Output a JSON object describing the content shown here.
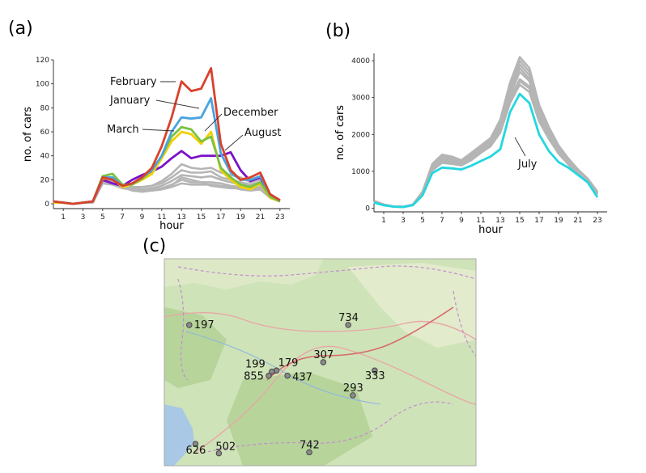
{
  "panels": {
    "a": {
      "letter": "(a)"
    },
    "b": {
      "letter": "(b)"
    },
    "c": {
      "letter": "(c)"
    }
  },
  "colors": {
    "background_series": "#b5b5b5",
    "february": "#d9412b",
    "january": "#4aa3df",
    "march": "#7ac143",
    "december": "#f2d000",
    "august": "#7a12c8",
    "july": "#22d7e0",
    "map_land": "#cfe3b8",
    "map_dark_land": "#b7d49b",
    "map_water": "#a9c8e6",
    "marker": "#8a8a8a"
  },
  "chart_data": [
    {
      "id": "a",
      "type": "line",
      "xlabel": "hour",
      "ylabel": "no. of cars",
      "xlim": [
        0,
        24
      ],
      "ylim": [
        -4,
        120
      ],
      "xticks": [
        1,
        3,
        5,
        7,
        9,
        11,
        13,
        15,
        17,
        19,
        21,
        23
      ],
      "yticks": [
        0,
        20,
        40,
        60,
        80,
        100,
        120
      ],
      "x": [
        0,
        1,
        2,
        3,
        4,
        5,
        6,
        7,
        8,
        9,
        10,
        11,
        12,
        13,
        14,
        15,
        16,
        17,
        18,
        19,
        20,
        21,
        22,
        23
      ],
      "highlighted": [
        {
          "name": "February",
          "color_key": "february",
          "values": [
            2,
            1,
            0,
            1,
            2,
            22,
            20,
            15,
            17,
            22,
            30,
            48,
            72,
            102,
            94,
            96,
            113,
            50,
            28,
            20,
            22,
            26,
            8,
            3
          ]
        },
        {
          "name": "January",
          "color_key": "january",
          "values": [
            2,
            1,
            0,
            1,
            2,
            22,
            22,
            15,
            17,
            22,
            28,
            40,
            60,
            72,
            71,
            72,
            88,
            42,
            26,
            20,
            20,
            23,
            8,
            3
          ]
        },
        {
          "name": "March",
          "color_key": "march",
          "values": [
            2,
            1,
            0,
            1,
            2,
            23,
            25,
            16,
            16,
            21,
            28,
            40,
            56,
            64,
            62,
            52,
            56,
            30,
            22,
            16,
            14,
            18,
            6,
            2
          ]
        },
        {
          "name": "December",
          "color_key": "december",
          "values": [
            1,
            1,
            0,
            1,
            2,
            21,
            21,
            14,
            16,
            20,
            25,
            38,
            52,
            60,
            58,
            50,
            60,
            28,
            20,
            14,
            12,
            17,
            5,
            2
          ]
        },
        {
          "name": "August",
          "color_key": "august",
          "values": [
            1,
            1,
            0,
            1,
            2,
            20,
            17,
            15,
            20,
            24,
            27,
            31,
            38,
            44,
            38,
            40,
            40,
            40,
            43,
            28,
            19,
            22,
            7,
            2
          ]
        }
      ],
      "background_series": [
        [
          2,
          1,
          0,
          1,
          2,
          22,
          21,
          16,
          14,
          14,
          15,
          19,
          25,
          33,
          30,
          29,
          30,
          26,
          24,
          22,
          18,
          20,
          8,
          3
        ],
        [
          2,
          1,
          0,
          1,
          2,
          22,
          19,
          15,
          13,
          14,
          15,
          17,
          22,
          28,
          26,
          26,
          27,
          22,
          20,
          18,
          16,
          18,
          7,
          3
        ],
        [
          1,
          1,
          0,
          1,
          2,
          21,
          19,
          16,
          13,
          12,
          13,
          15,
          19,
          24,
          23,
          22,
          23,
          20,
          18,
          16,
          15,
          16,
          6,
          2
        ],
        [
          2,
          1,
          0,
          1,
          1,
          19,
          17,
          14,
          12,
          11,
          12,
          13,
          16,
          20,
          18,
          18,
          18,
          17,
          15,
          14,
          13,
          14,
          5,
          2
        ],
        [
          1,
          1,
          0,
          1,
          1,
          17,
          16,
          13,
          12,
          11,
          11,
          12,
          14,
          17,
          16,
          16,
          16,
          15,
          14,
          12,
          11,
          12,
          5,
          2
        ],
        [
          1,
          1,
          0,
          1,
          1,
          18,
          17,
          14,
          11,
          10,
          11,
          13,
          15,
          22,
          20,
          18,
          15,
          14,
          13,
          13,
          12,
          13,
          5,
          2
        ]
      ],
      "annotations": [
        "February",
        "January",
        "December",
        "March",
        "August"
      ]
    },
    {
      "id": "b",
      "type": "line",
      "xlabel": "hour",
      "ylabel": "no. of cars",
      "xlim": [
        0,
        24
      ],
      "ylim": [
        -100,
        4200
      ],
      "xticks": [
        1,
        3,
        5,
        7,
        9,
        11,
        13,
        15,
        17,
        19,
        21,
        23
      ],
      "yticks": [
        0,
        1000,
        2000,
        3000,
        4000
      ],
      "x": [
        0,
        1,
        2,
        3,
        4,
        5,
        6,
        7,
        8,
        9,
        10,
        11,
        12,
        13,
        14,
        15,
        16,
        17,
        18,
        19,
        20,
        21,
        22,
        23
      ],
      "highlighted": [
        {
          "name": "July",
          "color_key": "july",
          "values": [
            150,
            80,
            40,
            30,
            80,
            350,
            950,
            1100,
            1080,
            1050,
            1150,
            1280,
            1400,
            1600,
            2600,
            3100,
            2850,
            2000,
            1550,
            1250,
            1100,
            900,
            700,
            300
          ]
        }
      ],
      "background_series": [
        [
          200,
          100,
          50,
          40,
          100,
          450,
          1200,
          1450,
          1400,
          1300,
          1500,
          1700,
          1900,
          2400,
          3400,
          4100,
          3800,
          2800,
          2200,
          1700,
          1350,
          1050,
          800,
          450
        ],
        [
          190,
          95,
          48,
          38,
          95,
          430,
          1150,
          1400,
          1350,
          1280,
          1450,
          1650,
          1850,
          2300,
          3300,
          4000,
          3700,
          2700,
          2100,
          1650,
          1300,
          1000,
          780,
          430
        ],
        [
          180,
          90,
          45,
          36,
          90,
          410,
          1100,
          1350,
          1300,
          1230,
          1400,
          1600,
          1800,
          2250,
          3200,
          3900,
          3600,
          2650,
          2050,
          1600,
          1270,
          980,
          760,
          410
        ],
        [
          170,
          85,
          44,
          34,
          88,
          400,
          1080,
          1300,
          1250,
          1200,
          1350,
          1560,
          1750,
          2200,
          3050,
          3700,
          3450,
          2550,
          2000,
          1550,
          1240,
          960,
          740,
          400
        ],
        [
          160,
          82,
          42,
          32,
          85,
          380,
          1050,
          1250,
          1220,
          1180,
          1320,
          1520,
          1700,
          2100,
          2950,
          3500,
          3300,
          2450,
          1950,
          1520,
          1220,
          950,
          730,
          380
        ],
        [
          165,
          84,
          43,
          33,
          86,
          390,
          1060,
          1280,
          1240,
          1190,
          1340,
          1540,
          1720,
          2150,
          2900,
          3450,
          3250,
          2400,
          1900,
          1500,
          1200,
          940,
          720,
          390
        ],
        [
          175,
          88,
          44,
          35,
          90,
          420,
          1120,
          1380,
          1330,
          1250,
          1420,
          1620,
          1820,
          2280,
          3150,
          3800,
          3500,
          2600,
          2080,
          1620,
          1280,
          990,
          770,
          420
        ],
        [
          155,
          80,
          41,
          31,
          83,
          370,
          1020,
          1230,
          1200,
          1160,
          1300,
          1500,
          1680,
          2050,
          2850,
          3350,
          3150,
          2350,
          1880,
          1480,
          1190,
          930,
          710,
          370
        ]
      ],
      "annotations": [
        "July"
      ]
    }
  ],
  "map": {
    "stations": [
      {
        "label": "197",
        "lon": 0.08,
        "lat": 0.32
      },
      {
        "label": "734",
        "lon": 0.59,
        "lat": 0.32
      },
      {
        "label": "307",
        "lon": 0.51,
        "lat": 0.5
      },
      {
        "label": "179",
        "lon": 0.36,
        "lat": 0.54
      },
      {
        "label": "199",
        "lon": 0.345,
        "lat": 0.545
      },
      {
        "label": "855",
        "lon": 0.335,
        "lat": 0.565
      },
      {
        "label": "437",
        "lon": 0.395,
        "lat": 0.565
      },
      {
        "label": "333",
        "lon": 0.675,
        "lat": 0.54
      },
      {
        "label": "293",
        "lon": 0.605,
        "lat": 0.66
      },
      {
        "label": "626",
        "lon": 0.1,
        "lat": 0.895
      },
      {
        "label": "502",
        "lon": 0.175,
        "lat": 0.94
      },
      {
        "label": "742",
        "lon": 0.465,
        "lat": 0.935
      }
    ]
  }
}
